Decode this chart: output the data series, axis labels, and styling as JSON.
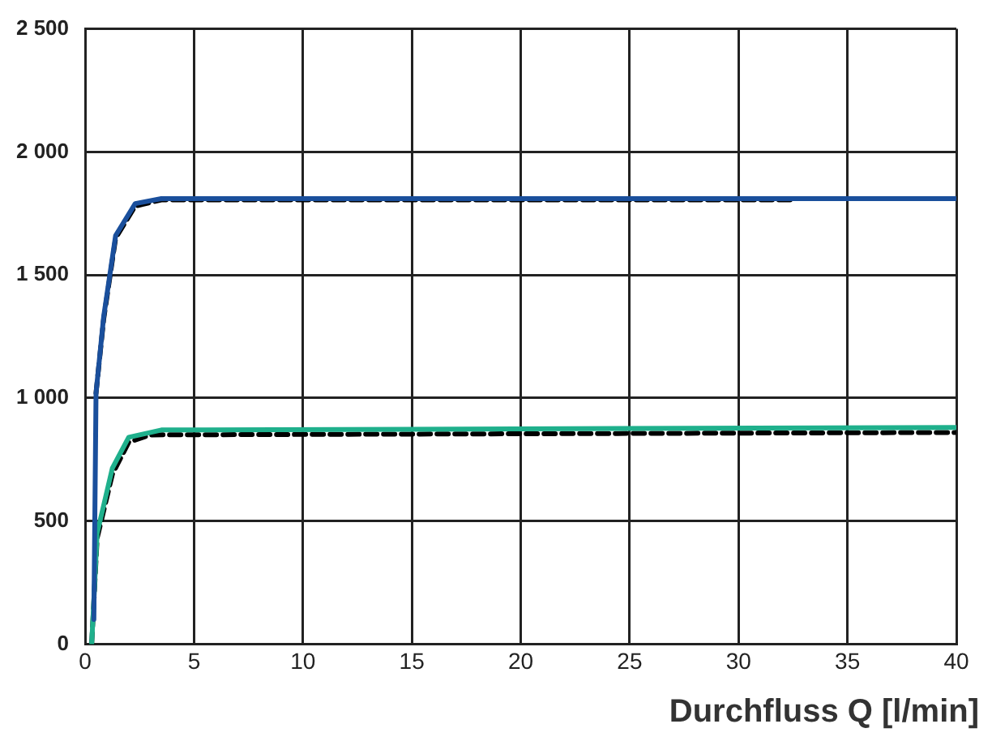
{
  "chart_data": {
    "type": "line",
    "xlabel": "Durchfluss Q [l/min]",
    "xlim": [
      0,
      40
    ],
    "xticks": [
      0,
      5,
      10,
      15,
      20,
      25,
      30,
      35,
      40
    ],
    "ylim": [
      0,
      2500
    ],
    "yticks": [
      0,
      500,
      {
        "value": 1000,
        "label": "1 000"
      },
      {
        "value": 1500,
        "label": "1 500"
      },
      {
        "value": 2000,
        "label": "2 000"
      },
      {
        "value": 2500,
        "label": "2 500"
      }
    ],
    "grid": true,
    "legend": false,
    "marker": "none",
    "series": [
      {
        "color": "#1a4f9c",
        "line_style": "solid",
        "x": [
          0.4,
          0.5,
          0.85,
          1.4,
          2.3,
          3.5,
          40
        ],
        "values": [
          100,
          1020,
          1330,
          1660,
          1790,
          1810,
          1810
        ]
      },
      {
        "color": "#000000",
        "line_style": "dashed",
        "x": [
          0.5,
          0.85,
          1.4,
          2.3,
          3.5,
          32.5
        ],
        "values": [
          1020,
          1320,
          1650,
          1780,
          1805,
          1805
        ]
      },
      {
        "color": "#1fb08c",
        "line_style": "solid",
        "x": [
          0.3,
          0.55,
          1.25,
          2.0,
          3.5,
          40
        ],
        "values": [
          0,
          450,
          715,
          840,
          870,
          880
        ]
      },
      {
        "color": "#000000",
        "line_style": "dashed",
        "x": [
          0.3,
          0.55,
          1.25,
          2.0,
          3.0,
          40
        ],
        "values": [
          0,
          430,
          690,
          820,
          850,
          860
        ]
      }
    ]
  }
}
